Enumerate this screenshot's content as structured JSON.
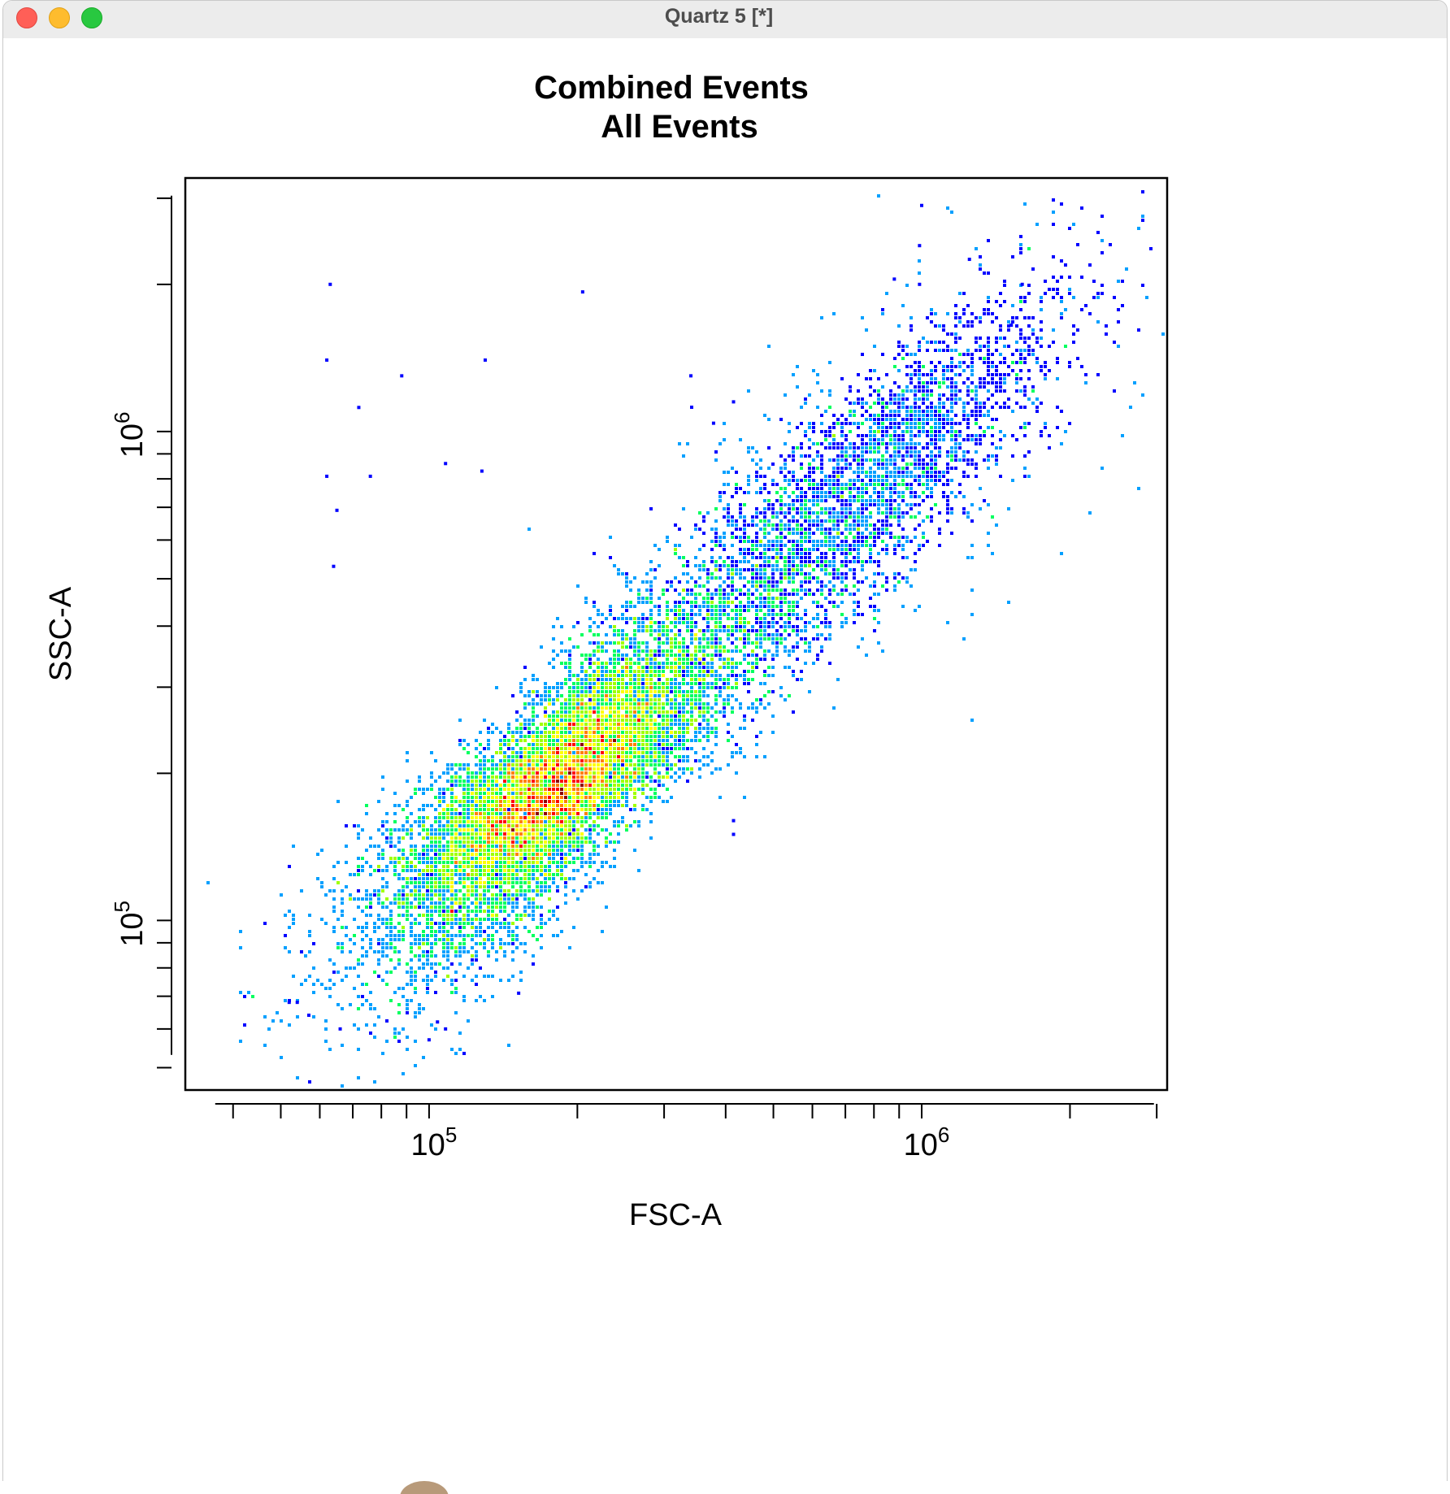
{
  "window": {
    "title": "Quartz 5 [*]",
    "traffic_lights": [
      "close",
      "minimize",
      "zoom"
    ]
  },
  "chart_data": {
    "type": "scatter",
    "title": "Combined Events",
    "subtitle": "All Events",
    "xlabel": "FSC-A",
    "ylabel": "SSC-A",
    "x_scale": "log",
    "y_scale": "log",
    "xlim": [
      32000,
      3150000
    ],
    "ylim": [
      45000,
      3300000
    ],
    "x_ticks": [
      {
        "value": 100000,
        "label": "10^5"
      },
      {
        "value": 1000000,
        "label": "10^6"
      }
    ],
    "y_ticks": [
      {
        "value": 100000,
        "label": "10^5"
      },
      {
        "value": 1000000,
        "label": "10^6"
      }
    ],
    "density_coloring": true,
    "color_scale": [
      "#0000ff",
      "#00a0ff",
      "#00ff60",
      "#a0ff00",
      "#ffff00",
      "#ff8000",
      "#ff0000",
      "#8b0000"
    ],
    "population": {
      "centre": {
        "x": 185000,
        "y": 195000
      },
      "major_axis_end": {
        "x": 1000000,
        "y": 1000000
      },
      "outliers": [
        {
          "x": 63000,
          "y": 2000000
        },
        {
          "x": 205000,
          "y": 1930000
        },
        {
          "x": 62000,
          "y": 1400000
        },
        {
          "x": 130000,
          "y": 1400000
        },
        {
          "x": 88000,
          "y": 1300000
        },
        {
          "x": 72000,
          "y": 1120000
        },
        {
          "x": 62000,
          "y": 810000
        },
        {
          "x": 76000,
          "y": 810000
        },
        {
          "x": 108000,
          "y": 860000
        },
        {
          "x": 128000,
          "y": 830000
        },
        {
          "x": 65000,
          "y": 690000
        },
        {
          "x": 64000,
          "y": 530000
        },
        {
          "x": 340000,
          "y": 1300000
        },
        {
          "x": 415000,
          "y": 1150000
        },
        {
          "x": 378000,
          "y": 1040000
        },
        {
          "x": 1000000,
          "y": 2900000
        },
        {
          "x": 990000,
          "y": 2400000
        },
        {
          "x": 1250000,
          "y": 2250000
        },
        {
          "x": 1600000,
          "y": 2000000
        },
        {
          "x": 990000,
          "y": 2000000
        },
        {
          "x": 880000,
          "y": 2050000
        },
        {
          "x": 1620000,
          "y": 1880000
        },
        {
          "x": 1520000,
          "y": 1650000
        },
        {
          "x": 52000,
          "y": 68000
        },
        {
          "x": 54000,
          "y": 68000
        },
        {
          "x": 57000,
          "y": 64000
        },
        {
          "x": 66000,
          "y": 60000
        },
        {
          "x": 100000,
          "y": 57000
        },
        {
          "x": 104000,
          "y": 62000
        },
        {
          "x": 108000,
          "y": 60000
        },
        {
          "x": 152000,
          "y": 71000
        },
        {
          "x": 415000,
          "y": 160000
        },
        {
          "x": 415000,
          "y": 150000
        }
      ]
    }
  }
}
